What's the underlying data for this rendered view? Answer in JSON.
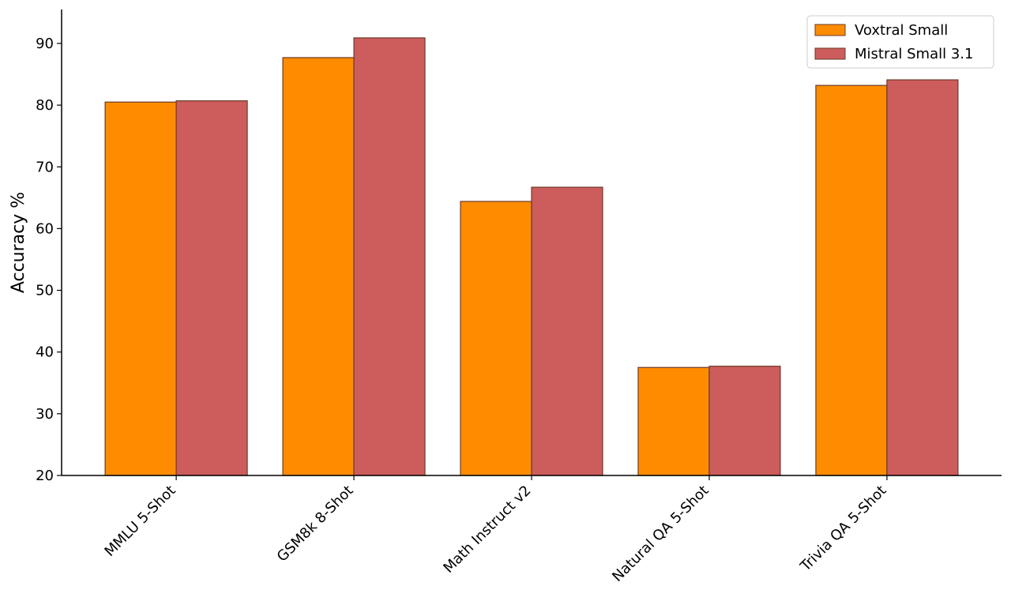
{
  "chart_data": {
    "type": "bar",
    "y_label": "Accuracy %",
    "categories": [
      "MMLU 5-Shot",
      "GSM8k 8-Shot",
      "Math Instruct v2",
      "Natural QA 5-Shot",
      "Trivia QA 5-Shot"
    ],
    "series": [
      {
        "name": "Voxtral Small",
        "color": "#ff8c00",
        "values": [
          80.5,
          87.7,
          64.4,
          37.5,
          83.2
        ]
      },
      {
        "name": "Mistral Small 3.1",
        "color": "#cd5c5c",
        "values": [
          80.7,
          90.9,
          66.7,
          37.7,
          84.1
        ]
      }
    ],
    "ylim": [
      20,
      95.5
    ],
    "yticks": [
      20,
      30,
      40,
      50,
      60,
      70,
      80,
      90
    ],
    "legend": "upper right",
    "grid": false
  }
}
